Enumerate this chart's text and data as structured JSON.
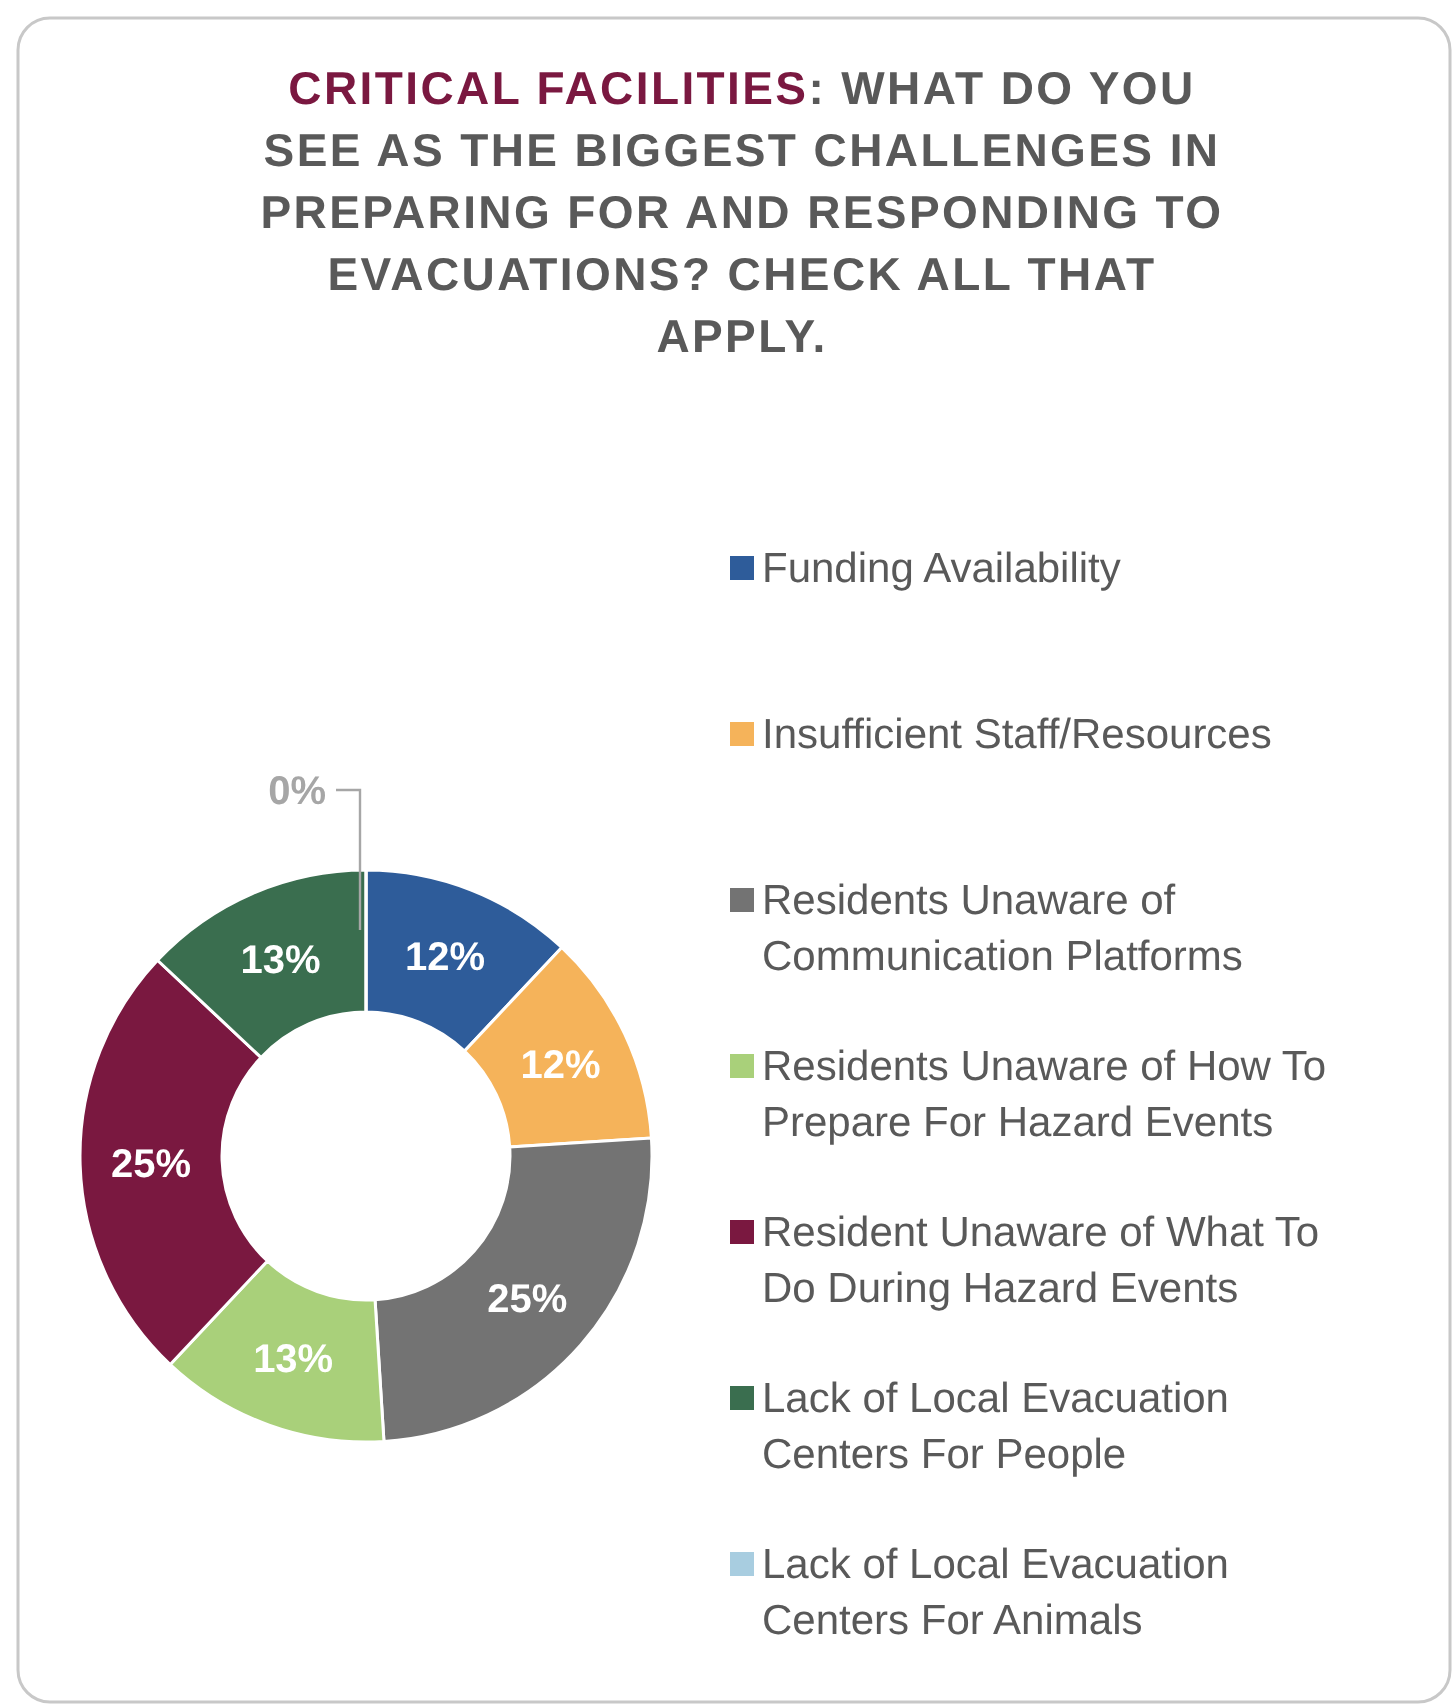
{
  "chart_data": {
    "type": "donut",
    "title": "CRITICAL FACILITIES: WHAT DO YOU SEE AS THE BIGGEST CHALLENGES IN PREPARING FOR AND RESPONDING TO EVACUATIONS? CHECK ALL THAT APPLY.",
    "categories": [
      "Funding Availability",
      "Insufficient Staff/Resources",
      "Residents Unaware of Communication Platforms",
      "Residents Unaware of How To Prepare For Hazard Events",
      "Resident Unaware of What To Do During Hazard Events",
      "Lack of Local Evacuation Centers For People",
      "Lack of Local Evacuation Centers For Animals"
    ],
    "values": [
      12,
      12,
      25,
      13,
      25,
      13,
      0
    ],
    "value_labels": [
      "12%",
      "12%",
      "25%",
      "13%",
      "25%",
      "13%",
      "0%"
    ],
    "colors": [
      "#2e5c9a",
      "#f5b35a",
      "#737373",
      "#a9d07a",
      "#7a1840",
      "#3a6e4f",
      "#a8cde0"
    ],
    "legend": "right"
  }
}
